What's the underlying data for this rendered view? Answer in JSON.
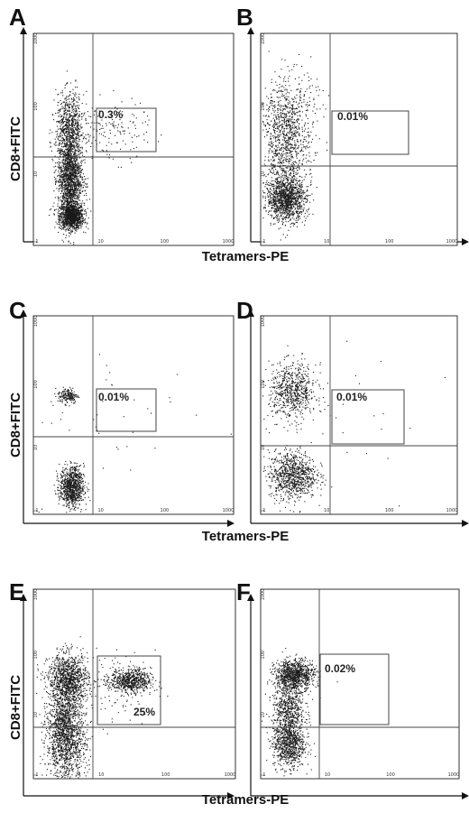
{
  "chart_data": [
    {
      "type": "scatter",
      "panel": "A",
      "xlabel": "Tetramers-PE",
      "ylabel": "CD8+FITC",
      "scale": "log",
      "xlim": [
        1,
        1000
      ],
      "ylim": [
        1,
        1000
      ],
      "ticks": [
        "1",
        "10",
        "100",
        "1000"
      ],
      "gate_value": "0.3%"
    },
    {
      "type": "scatter",
      "panel": "B",
      "xlabel": "",
      "ylabel": "",
      "scale": "log",
      "xlim": [
        1,
        1000
      ],
      "ylim": [
        1,
        1000
      ],
      "ticks": [
        "1",
        "10",
        "100",
        "1000"
      ],
      "gate_value": "0.01%"
    },
    {
      "type": "scatter",
      "panel": "C",
      "xlabel": "Tetramers-PE",
      "ylabel": "CD8+FITC",
      "scale": "log",
      "xlim": [
        1,
        1000
      ],
      "ylim": [
        1,
        1000
      ],
      "ticks": [
        "1",
        "10",
        "100",
        "1000"
      ],
      "gate_value": "0.01%"
    },
    {
      "type": "scatter",
      "panel": "D",
      "xlabel": "",
      "ylabel": "",
      "scale": "log",
      "xlim": [
        1,
        1000
      ],
      "ylim": [
        1,
        1000
      ],
      "ticks": [
        "1",
        "10",
        "100",
        "1000"
      ],
      "gate_value": "0.01%"
    },
    {
      "type": "scatter",
      "panel": "E",
      "xlabel": "Tetramers-PE",
      "ylabel": "CD8+FITC",
      "scale": "log",
      "xlim": [
        1,
        1000
      ],
      "ylim": [
        1,
        1000
      ],
      "ticks": [
        "1",
        "10",
        "100",
        "1000"
      ],
      "gate_value": "25%"
    },
    {
      "type": "scatter",
      "panel": "F",
      "xlabel": "",
      "ylabel": "",
      "scale": "log",
      "xlim": [
        1,
        1000
      ],
      "ylim": [
        1,
        1000
      ],
      "ticks": [
        "1",
        "10",
        "100",
        "1000"
      ],
      "gate_value": "0.02%"
    }
  ],
  "colors": {
    "dots": "#1a1a1a",
    "lines": "#444444",
    "text": "#111111"
  }
}
